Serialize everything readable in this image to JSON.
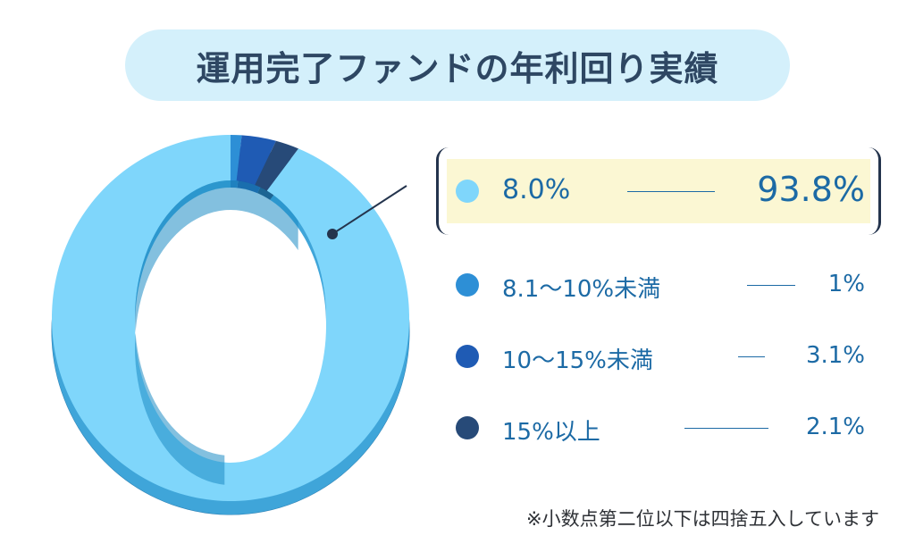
{
  "title": "運用完了ファンドの年利回り実績",
  "note": "※小数点第二位以下は四捨五入しています",
  "colors": {
    "title_bg": "#d4f0fb",
    "title_text": "#2e4763",
    "text": "#1c6aa5",
    "highlight_bg": "#fbf7d3"
  },
  "chart_data": {
    "type": "pie",
    "style": "3d-donut",
    "categories": [
      "8.0%",
      "8.1〜10%未満",
      "10〜15%未満",
      "15%以上"
    ],
    "values": [
      93.8,
      1,
      3.1,
      2.1
    ],
    "value_labels": [
      "93.8%",
      "1%",
      "3.1%",
      "2.1%"
    ],
    "colors": [
      "#7fd6fb",
      "#2d8fd6",
      "#1f5bb4",
      "#274a78"
    ],
    "highlighted": "8.0%",
    "legend_position": "right"
  }
}
